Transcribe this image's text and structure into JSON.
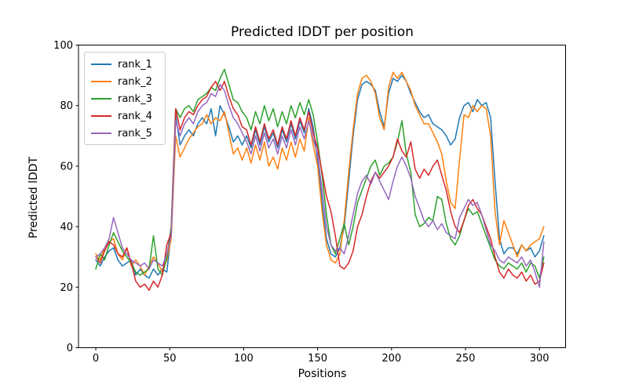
{
  "chart_data": {
    "type": "line",
    "title": "Predicted lDDT per position",
    "xlabel": "Positions",
    "ylabel": "Predicted lDDT",
    "xlim": [
      -11.7,
      317.7
    ],
    "ylim": [
      0,
      100
    ],
    "x_ticks": [
      0,
      50,
      100,
      150,
      200,
      250,
      300
    ],
    "y_ticks": [
      0,
      20,
      40,
      60,
      80,
      100
    ],
    "grid": false,
    "legend_position": "upper left",
    "line_width": 1.5,
    "x_start": 0,
    "x_step": 3,
    "series": [
      {
        "name": "rank_1",
        "color": "#1f77b4",
        "values": [
          29,
          27,
          30,
          32,
          33,
          29,
          27,
          28,
          29,
          24,
          26,
          24,
          23,
          26,
          24,
          26,
          25,
          38,
          77,
          67,
          70,
          72,
          70,
          74,
          76,
          74,
          79,
          70,
          80,
          77,
          73,
          68,
          70,
          67,
          70,
          66,
          72,
          67,
          73,
          68,
          71,
          66,
          72,
          68,
          74,
          69,
          75,
          71,
          79,
          73,
          62,
          48,
          36,
          31,
          30,
          33,
          40,
          55,
          70,
          82,
          87,
          88,
          87,
          85,
          78,
          73,
          84,
          89,
          88,
          90,
          88,
          84,
          81,
          78,
          76,
          77,
          74,
          73,
          72,
          70,
          67,
          69,
          76,
          80,
          81,
          78,
          82,
          80,
          81,
          76,
          55,
          36,
          31,
          33,
          33,
          31,
          34,
          32,
          33,
          30,
          32,
          37
        ]
      },
      {
        "name": "rank_2",
        "color": "#ff7f0e",
        "values": [
          31,
          29,
          33,
          35,
          36,
          31,
          29,
          33,
          27,
          29,
          27,
          24,
          27,
          30,
          28,
          25,
          29,
          36,
          70,
          63,
          66,
          69,
          71,
          73,
          74,
          77,
          74,
          76,
          75,
          78,
          71,
          64,
          66,
          62,
          66,
          61,
          67,
          62,
          68,
          60,
          63,
          59,
          66,
          62,
          68,
          63,
          69,
          65,
          76,
          67,
          60,
          45,
          34,
          29,
          28,
          31,
          42,
          58,
          72,
          84,
          89,
          90,
          88,
          84,
          76,
          72,
          86,
          91,
          89,
          91,
          88,
          85,
          80,
          77,
          74,
          74,
          71,
          68,
          64,
          55,
          48,
          46,
          62,
          77,
          76,
          80,
          78,
          80,
          79,
          70,
          45,
          34,
          42,
          38,
          34,
          30,
          34,
          32,
          34,
          35,
          36,
          40
        ]
      },
      {
        "name": "rank_3",
        "color": "#2ca02c",
        "values": [
          26,
          31,
          29,
          34,
          38,
          35,
          32,
          30,
          28,
          25,
          24,
          25,
          26,
          37,
          26,
          24,
          30,
          40,
          79,
          76,
          79,
          80,
          78,
          82,
          83,
          84,
          86,
          85,
          89,
          92,
          87,
          82,
          81,
          78,
          76,
          72,
          78,
          74,
          80,
          75,
          79,
          73,
          78,
          74,
          80,
          76,
          81,
          77,
          82,
          77,
          68,
          57,
          44,
          34,
          31,
          36,
          41,
          34,
          40,
          48,
          52,
          56,
          60,
          62,
          57,
          60,
          61,
          63,
          68,
          75,
          64,
          58,
          44,
          40,
          41,
          43,
          42,
          50,
          49,
          41,
          36,
          34,
          37,
          42,
          46,
          44,
          45,
          41,
          37,
          33,
          29,
          27,
          26,
          28,
          27,
          26,
          28,
          25,
          28,
          27,
          23,
          30
        ]
      },
      {
        "name": "rank_4",
        "color": "#d62728",
        "values": [
          30,
          28,
          32,
          35,
          34,
          31,
          30,
          33,
          28,
          22,
          20,
          21,
          19,
          22,
          20,
          24,
          34,
          38,
          79,
          72,
          76,
          78,
          77,
          80,
          82,
          83,
          86,
          88,
          85,
          88,
          83,
          79,
          77,
          73,
          72,
          67,
          73,
          68,
          74,
          69,
          72,
          67,
          73,
          69,
          75,
          70,
          76,
          72,
          78,
          71,
          66,
          58,
          50,
          45,
          37,
          27,
          26,
          28,
          32,
          40,
          44,
          50,
          55,
          58,
          56,
          58,
          60,
          63,
          69,
          65,
          63,
          68,
          59,
          56,
          59,
          57,
          60,
          62,
          57,
          52,
          45,
          40,
          38,
          42,
          47,
          49,
          46,
          44,
          40,
          36,
          30,
          25,
          23,
          26,
          24,
          23,
          25,
          22,
          24,
          21,
          22,
          28
        ]
      },
      {
        "name": "rank_5",
        "color": "#9467bd",
        "values": [
          30,
          31,
          33,
          36,
          43,
          38,
          33,
          31,
          29,
          28,
          27,
          28,
          26,
          29,
          28,
          27,
          31,
          37,
          75,
          70,
          74,
          76,
          74,
          78,
          80,
          81,
          84,
          83,
          87,
          85,
          80,
          76,
          74,
          71,
          68,
          64,
          70,
          65,
          71,
          66,
          69,
          64,
          70,
          66,
          72,
          67,
          73,
          69,
          75,
          69,
          64,
          52,
          40,
          34,
          32,
          33,
          31,
          37,
          44,
          51,
          55,
          57,
          54,
          58,
          55,
          52,
          49,
          55,
          60,
          63,
          60,
          56,
          50,
          46,
          42,
          40,
          42,
          39,
          41,
          38,
          37,
          36,
          43,
          46,
          49,
          47,
          48,
          44,
          39,
          34,
          32,
          29,
          28,
          30,
          29,
          28,
          30,
          27,
          29,
          25,
          20,
          35
        ]
      }
    ]
  }
}
